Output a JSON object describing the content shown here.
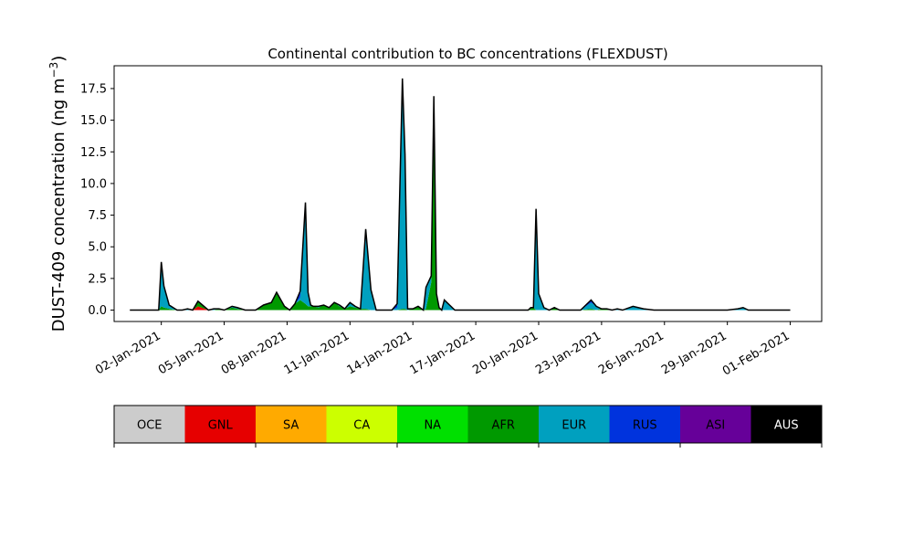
{
  "chart_data": {
    "type": "area",
    "stacked": true,
    "title": "Continental contribution to BC concentrations (FLEXDUST)",
    "ylabel_main": "DUST-409 concentration (ng m",
    "ylabel_sup": "−3",
    "ylabel_close": ")",
    "xlabel": "",
    "ylim": [
      -0.9,
      19.3
    ],
    "yticks": [
      "0.0",
      "2.5",
      "5.0",
      "7.5",
      "10.0",
      "12.5",
      "15.0",
      "17.5"
    ],
    "ytick_values": [
      0,
      2.5,
      5,
      7.5,
      10,
      12.5,
      15,
      17.5
    ],
    "xlim": [
      "2020-12-30T18:00",
      "2021-02-02T12:00"
    ],
    "xticks": [
      "02-Jan-2021",
      "05-Jan-2021",
      "08-Jan-2021",
      "11-Jan-2021",
      "14-Jan-2021",
      "17-Jan-2021",
      "20-Jan-2021",
      "23-Jan-2021",
      "26-Jan-2021",
      "29-Jan-2021",
      "01-Feb-2021"
    ],
    "xtick_dates": [
      "2021-01-02",
      "2021-01-05",
      "2021-01-08",
      "2021-01-11",
      "2021-01-14",
      "2021-01-17",
      "2021-01-20",
      "2021-01-23",
      "2021-01-26",
      "2021-01-29",
      "2021-02-01"
    ],
    "grid": false,
    "x": [
      "2020-12-31T12:00",
      "2021-01-01T12:00",
      "2021-01-01T21:00",
      "2021-01-02T00:00",
      "2021-01-02T03:00",
      "2021-01-02T09:00",
      "2021-01-02T18:00",
      "2021-01-03T00:00",
      "2021-01-03T06:00",
      "2021-01-03T12:00",
      "2021-01-03T18:00",
      "2021-01-04T06:00",
      "2021-01-04T12:00",
      "2021-01-04T18:00",
      "2021-01-05T00:00",
      "2021-01-05T09:00",
      "2021-01-05T15:00",
      "2021-01-06T00:00",
      "2021-01-06T12:00",
      "2021-01-06T21:00",
      "2021-01-07T06:00",
      "2021-01-07T12:00",
      "2021-01-07T21:00",
      "2021-01-08T03:00",
      "2021-01-08T09:00",
      "2021-01-08T15:00",
      "2021-01-08T21:00",
      "2021-01-09T00:00",
      "2021-01-09T03:00",
      "2021-01-09T06:00",
      "2021-01-09T12:00",
      "2021-01-09T18:00",
      "2021-01-10T00:00",
      "2021-01-10T06:00",
      "2021-01-10T12:00",
      "2021-01-10T18:00",
      "2021-01-11T00:00",
      "2021-01-11T06:00",
      "2021-01-11T12:00",
      "2021-01-11T18:00",
      "2021-01-12T00:00",
      "2021-01-12T06:00",
      "2021-01-12T12:00",
      "2021-01-12T18:00",
      "2021-01-13T00:00",
      "2021-01-13T06:00",
      "2021-01-13T12:00",
      "2021-01-13T15:00",
      "2021-01-13T18:00",
      "2021-01-14T00:00",
      "2021-01-14T06:00",
      "2021-01-14T12:00",
      "2021-01-14T15:00",
      "2021-01-14T21:00",
      "2021-01-15T00:00",
      "2021-01-15T03:00",
      "2021-01-15T06:00",
      "2021-01-15T09:00",
      "2021-01-15T12:00",
      "2021-01-16T00:00",
      "2021-01-19T00:00",
      "2021-01-19T06:00",
      "2021-01-19T12:00",
      "2021-01-19T15:00",
      "2021-01-19T18:00",
      "2021-01-19T21:00",
      "2021-01-20T00:00",
      "2021-01-20T06:00",
      "2021-01-20T12:00",
      "2021-01-20T18:00",
      "2021-01-21T00:00",
      "2021-01-21T12:00",
      "2021-01-22T00:00",
      "2021-01-22T12:00",
      "2021-01-22T18:00",
      "2021-01-23T00:00",
      "2021-01-23T06:00",
      "2021-01-23T12:00",
      "2021-01-23T18:00",
      "2021-01-24T00:00",
      "2021-01-24T12:00",
      "2021-01-25T00:00",
      "2021-01-25T12:00",
      "2021-01-26T00:00",
      "2021-01-27T00:00",
      "2021-01-27T12:00",
      "2021-01-28T00:00",
      "2021-01-29T00:00",
      "2021-01-29T12:00",
      "2021-01-29T18:00",
      "2021-01-30T00:00",
      "2021-01-31T00:00",
      "2021-01-31T12:00",
      "2021-02-01T00:00"
    ],
    "series": [
      {
        "name": "OCE",
        "color": "#cccccc",
        "values": [
          0,
          0,
          0,
          0,
          0,
          0,
          0,
          0,
          0,
          0,
          0,
          0,
          0,
          0,
          0,
          0,
          0,
          0,
          0,
          0,
          0,
          0,
          0,
          0,
          0,
          0,
          0,
          0,
          0,
          0,
          0,
          0,
          0,
          0,
          0,
          0,
          0,
          0,
          0,
          0,
          0,
          0,
          0,
          0,
          0,
          0,
          0,
          0,
          0,
          0,
          0,
          0,
          0,
          0,
          0,
          0,
          0,
          0,
          0,
          0,
          0,
          0,
          0,
          0,
          0,
          0,
          0,
          0,
          0,
          0,
          0,
          0,
          0,
          0,
          0,
          0,
          0,
          0,
          0,
          0,
          0,
          0,
          0,
          0,
          0,
          0,
          0,
          0,
          0,
          0,
          0,
          0,
          0,
          0
        ]
      },
      {
        "name": "GNL",
        "color": "#e60000",
        "values": [
          0,
          0,
          0,
          0,
          0,
          0,
          0,
          0,
          0,
          0,
          0.3,
          0,
          0,
          0,
          0,
          0,
          0,
          0,
          0,
          0,
          0,
          0,
          0,
          0,
          0,
          0,
          0,
          0,
          0,
          0,
          0,
          0,
          0,
          0,
          0,
          0,
          0,
          0,
          0,
          0,
          0,
          0,
          0,
          0,
          0,
          0,
          0,
          0,
          0,
          0,
          0,
          0,
          0,
          0,
          0,
          0,
          0,
          0,
          0,
          0,
          0,
          0,
          0,
          0,
          0,
          0,
          0,
          0,
          0,
          0,
          0,
          0,
          0,
          0,
          0,
          0,
          0,
          0,
          0,
          0,
          0,
          0,
          0,
          0,
          0,
          0,
          0,
          0,
          0,
          0,
          0,
          0,
          0,
          0
        ]
      },
      {
        "name": "SA",
        "color": "#ffaa00",
        "values": [
          0,
          0,
          0,
          0,
          0,
          0,
          0,
          0,
          0,
          0,
          0,
          0,
          0,
          0,
          0,
          0,
          0,
          0,
          0,
          0,
          0,
          0,
          0,
          0,
          0,
          0,
          0,
          0,
          0,
          0,
          0,
          0,
          0,
          0,
          0,
          0,
          0,
          0,
          0,
          0,
          0,
          0,
          0,
          0,
          0,
          0,
          0,
          0,
          0,
          0,
          0,
          0,
          0,
          0,
          0,
          0,
          0,
          0,
          0,
          0,
          0,
          0,
          0,
          0,
          0,
          0,
          0,
          0,
          0,
          0,
          0,
          0,
          0,
          0,
          0,
          0,
          0,
          0,
          0,
          0,
          0,
          0,
          0,
          0,
          0,
          0,
          0,
          0,
          0,
          0,
          0,
          0,
          0,
          0
        ]
      },
      {
        "name": "CA",
        "color": "#ccff00",
        "values": [
          0,
          0,
          0,
          0,
          0,
          0,
          0,
          0,
          0,
          0,
          0,
          0,
          0,
          0,
          0,
          0,
          0,
          0,
          0,
          0,
          0,
          0,
          0,
          0,
          0,
          0,
          0,
          0,
          0,
          0,
          0,
          0,
          0,
          0,
          0,
          0,
          0,
          0,
          0,
          0,
          0,
          0,
          0,
          0,
          0,
          0,
          0,
          0,
          0,
          0,
          0,
          0,
          0,
          0,
          0,
          0,
          0,
          0,
          0,
          0,
          0,
          0,
          0,
          0,
          0,
          0,
          0,
          0,
          0,
          0,
          0,
          0,
          0,
          0,
          0,
          0,
          0,
          0,
          0,
          0,
          0,
          0,
          0,
          0,
          0,
          0,
          0,
          0,
          0,
          0,
          0,
          0,
          0,
          0
        ]
      },
      {
        "name": "NA",
        "color": "#00e000",
        "values": [
          0,
          0,
          0,
          0,
          0,
          0,
          0,
          0,
          0,
          0,
          0,
          0,
          0,
          0,
          0,
          0,
          0,
          0,
          0,
          0,
          0,
          0,
          0,
          0,
          0,
          0,
          0,
          0,
          0,
          0,
          0,
          0,
          0,
          0,
          0,
          0,
          0,
          0,
          0,
          0,
          0,
          0,
          0,
          0,
          0,
          0,
          0,
          0,
          0,
          0,
          0,
          0,
          0,
          0,
          0,
          0,
          0,
          0,
          0,
          0,
          0,
          0,
          0,
          0,
          0,
          0,
          0,
          0,
          0,
          0,
          0,
          0,
          0,
          0,
          0,
          0,
          0,
          0,
          0,
          0,
          0,
          0,
          0,
          0,
          0,
          0,
          0,
          0,
          0,
          0,
          0,
          0,
          0,
          0
        ]
      },
      {
        "name": "AFR",
        "color": "#009900",
        "values": [
          0,
          0,
          0,
          0.3,
          0.2,
          0.1,
          0,
          0,
          0,
          0,
          0.4,
          0,
          0,
          0.1,
          0,
          0.2,
          0.1,
          0,
          0,
          0.4,
          0.6,
          1.4,
          0.3,
          0,
          0.5,
          0.8,
          0.5,
          0.3,
          0.3,
          0.3,
          0.2,
          0.4,
          0.2,
          0.6,
          0.3,
          0.1,
          0.3,
          0.2,
          0.1,
          0.1,
          0,
          0,
          0,
          0,
          0,
          0,
          0.1,
          0.1,
          0,
          0.1,
          0.3,
          0,
          0.1,
          2.2,
          16.2,
          1.0,
          0.2,
          0,
          0,
          0,
          0,
          0,
          0,
          0.2,
          0.2,
          0,
          0,
          0,
          0,
          0.2,
          0,
          0,
          0,
          0.1,
          0,
          0.1,
          0.1,
          0,
          0,
          0,
          0,
          0,
          0,
          0,
          0,
          0,
          0,
          0,
          0,
          0,
          0,
          0,
          0,
          0
        ]
      },
      {
        "name": "EUR",
        "color": "#00a0bf",
        "values": [
          0,
          0,
          0,
          3.3,
          1.6,
          0.3,
          0,
          0,
          0.1,
          0,
          0,
          0,
          0.1,
          0,
          0,
          0.1,
          0.1,
          0,
          0,
          0,
          0,
          0,
          0,
          0,
          0,
          0.2,
          7.4,
          1.0,
          0.1,
          0,
          0.1,
          0,
          0,
          0,
          0.1,
          0,
          0.3,
          0.1,
          0,
          5.7,
          1.5,
          0,
          0,
          0,
          0,
          0.2,
          17.3,
          12.0,
          0.1,
          0,
          0,
          0,
          1.6,
          0.5,
          0.4,
          0.2,
          0,
          0,
          0.8,
          0,
          0,
          0,
          0,
          0,
          0,
          7.5,
          1.2,
          0.2,
          0,
          0,
          0,
          0,
          0,
          0.5,
          0.3,
          0,
          0,
          0,
          0.1,
          0,
          0.3,
          0.1,
          0,
          0,
          0,
          0,
          0,
          0,
          0.1,
          0.2,
          0,
          0,
          0,
          0
        ]
      },
      {
        "name": "RUS",
        "color": "#0033dd",
        "values": [
          0,
          0,
          0,
          0.2,
          0.1,
          0,
          0,
          0,
          0,
          0,
          0,
          0,
          0,
          0,
          0,
          0,
          0,
          0,
          0,
          0,
          0,
          0,
          0,
          0,
          0,
          0.5,
          0.6,
          0.1,
          0,
          0,
          0,
          0,
          0,
          0,
          0,
          0,
          0,
          0,
          0,
          0.6,
          0.1,
          0,
          0,
          0,
          0,
          0.3,
          0.9,
          0.2,
          0,
          0,
          0,
          0,
          0.1,
          0,
          0.3,
          0.1,
          0,
          0,
          0,
          0,
          0,
          0,
          0,
          0,
          0,
          0.5,
          0.1,
          0,
          0,
          0,
          0,
          0,
          0,
          0.2,
          0,
          0,
          0,
          0,
          0,
          0,
          0,
          0,
          0,
          0,
          0,
          0,
          0,
          0,
          0,
          0,
          0,
          0,
          0,
          0
        ]
      },
      {
        "name": "ASI",
        "color": "#660099",
        "values": [
          0,
          0,
          0,
          0,
          0,
          0,
          0,
          0,
          0,
          0,
          0,
          0,
          0,
          0,
          0,
          0,
          0,
          0,
          0,
          0,
          0,
          0,
          0,
          0,
          0,
          0,
          0,
          0,
          0,
          0,
          0,
          0,
          0,
          0,
          0,
          0,
          0,
          0,
          0,
          0,
          0,
          0,
          0,
          0,
          0,
          0,
          0,
          0,
          0,
          0,
          0,
          0,
          0,
          0,
          0,
          0,
          0,
          0,
          0,
          0,
          0,
          0,
          0,
          0,
          0,
          0,
          0,
          0,
          0,
          0,
          0,
          0,
          0,
          0,
          0,
          0,
          0,
          0,
          0,
          0,
          0,
          0,
          0,
          0,
          0,
          0,
          0,
          0,
          0,
          0,
          0,
          0,
          0,
          0
        ]
      },
      {
        "name": "AUS",
        "color": "#000000",
        "values": [
          0,
          0,
          0,
          0,
          0,
          0,
          0,
          0,
          0,
          0,
          0,
          0,
          0,
          0,
          0,
          0,
          0,
          0,
          0,
          0,
          0,
          0,
          0,
          0,
          0,
          0,
          0,
          0,
          0,
          0,
          0,
          0,
          0,
          0,
          0,
          0,
          0,
          0,
          0,
          0,
          0,
          0,
          0,
          0,
          0,
          0,
          0,
          0,
          0,
          0,
          0,
          0,
          0,
          0,
          0,
          0,
          0,
          0,
          0,
          0,
          0,
          0,
          0,
          0,
          0,
          0,
          0,
          0,
          0,
          0,
          0,
          0,
          0,
          0,
          0,
          0,
          0,
          0,
          0,
          0,
          0,
          0,
          0,
          0,
          0,
          0,
          0,
          0,
          0,
          0,
          0,
          0,
          0,
          0
        ]
      }
    ],
    "legend": {
      "placement": "bottom",
      "type": "colorbar"
    }
  }
}
